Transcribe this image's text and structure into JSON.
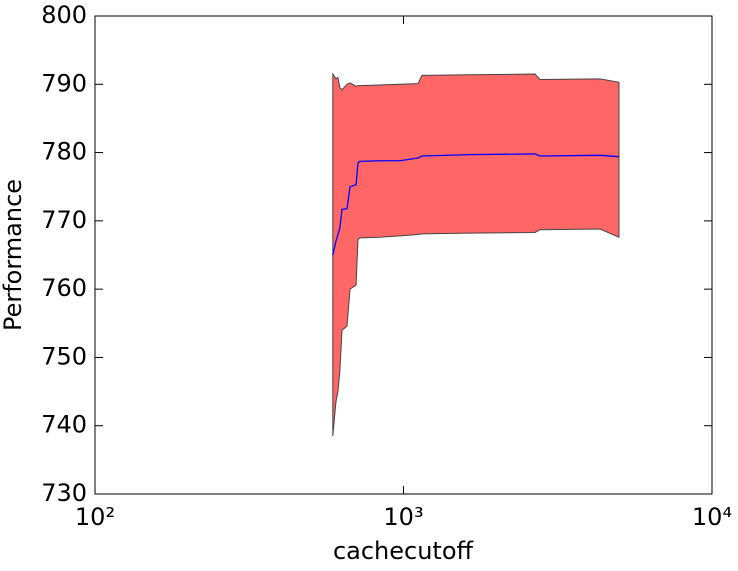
{
  "chart_data": {
    "type": "line",
    "xlabel": "cachecutoff",
    "ylabel": "Performance",
    "x": [
      590,
      604,
      613,
      622,
      632,
      641,
      656,
      671,
      702,
      712,
      723,
      839,
      974,
      1114,
      1148,
      1643,
      2667,
      2771,
      4335,
      4995
    ],
    "series": [
      {
        "color": "#0000ff",
        "values": [
          765,
          767,
          768,
          769,
          771.7,
          771.7,
          771.8,
          775,
          775.3,
          778.5,
          778.7,
          778.8,
          778.8,
          779.2,
          779.5,
          779.7,
          779.8,
          779.5,
          779.6,
          779.4
        ]
      }
    ],
    "band": {
      "color": "#ff6666",
      "edge_color": "#444444",
      "upper": [
        791.5,
        790.8,
        791,
        789.5,
        789.2,
        789.5,
        790,
        790.2,
        789.7,
        789.8,
        789.8,
        789.9,
        790,
        790.1,
        791.3,
        791.4,
        791.5,
        790.7,
        790.8,
        790.3
      ],
      "lower": [
        738.5,
        743.5,
        745,
        748,
        754,
        754.2,
        754.6,
        760,
        760.6,
        767.3,
        767.5,
        767.6,
        767.8,
        768,
        768.1,
        768.2,
        768.3,
        768.7,
        768.8,
        767.6
      ]
    },
    "xscale": "log",
    "xlim": [
      100,
      10000
    ],
    "xticks": [
      {
        "value": 100,
        "label": "10²"
      },
      {
        "value": 1000,
        "label": "10³"
      },
      {
        "value": 10000,
        "label": "10⁴"
      }
    ],
    "ylim": [
      730,
      800
    ],
    "yticks": [
      730,
      740,
      750,
      760,
      770,
      780,
      790,
      800
    ],
    "grid": false
  }
}
